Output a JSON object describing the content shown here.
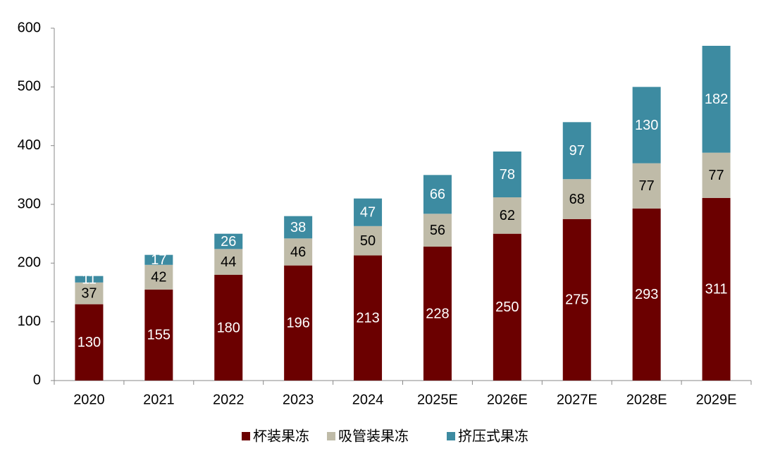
{
  "chart_data": {
    "type": "stacked_bar",
    "categories": [
      "2020",
      "2021",
      "2022",
      "2023",
      "2024",
      "2025E",
      "2026E",
      "2027E",
      "2028E",
      "2029E"
    ],
    "series": [
      {
        "name": "杯装果冻",
        "color": "#6b0000",
        "values": [
          130,
          155,
          180,
          196,
          213,
          228,
          250,
          275,
          293,
          311
        ]
      },
      {
        "name": "吸管装果冻",
        "color": "#bfbba8",
        "values": [
          37,
          42,
          44,
          46,
          50,
          56,
          62,
          68,
          77,
          77
        ]
      },
      {
        "name": "挤压式果冻",
        "color": "#3d8ba1",
        "values": [
          11,
          17,
          26,
          38,
          47,
          66,
          78,
          97,
          130,
          182
        ]
      }
    ],
    "ylim": [
      0,
      600
    ],
    "yticks": [
      0,
      100,
      200,
      300,
      400,
      500,
      600
    ],
    "legend": "bottom"
  }
}
